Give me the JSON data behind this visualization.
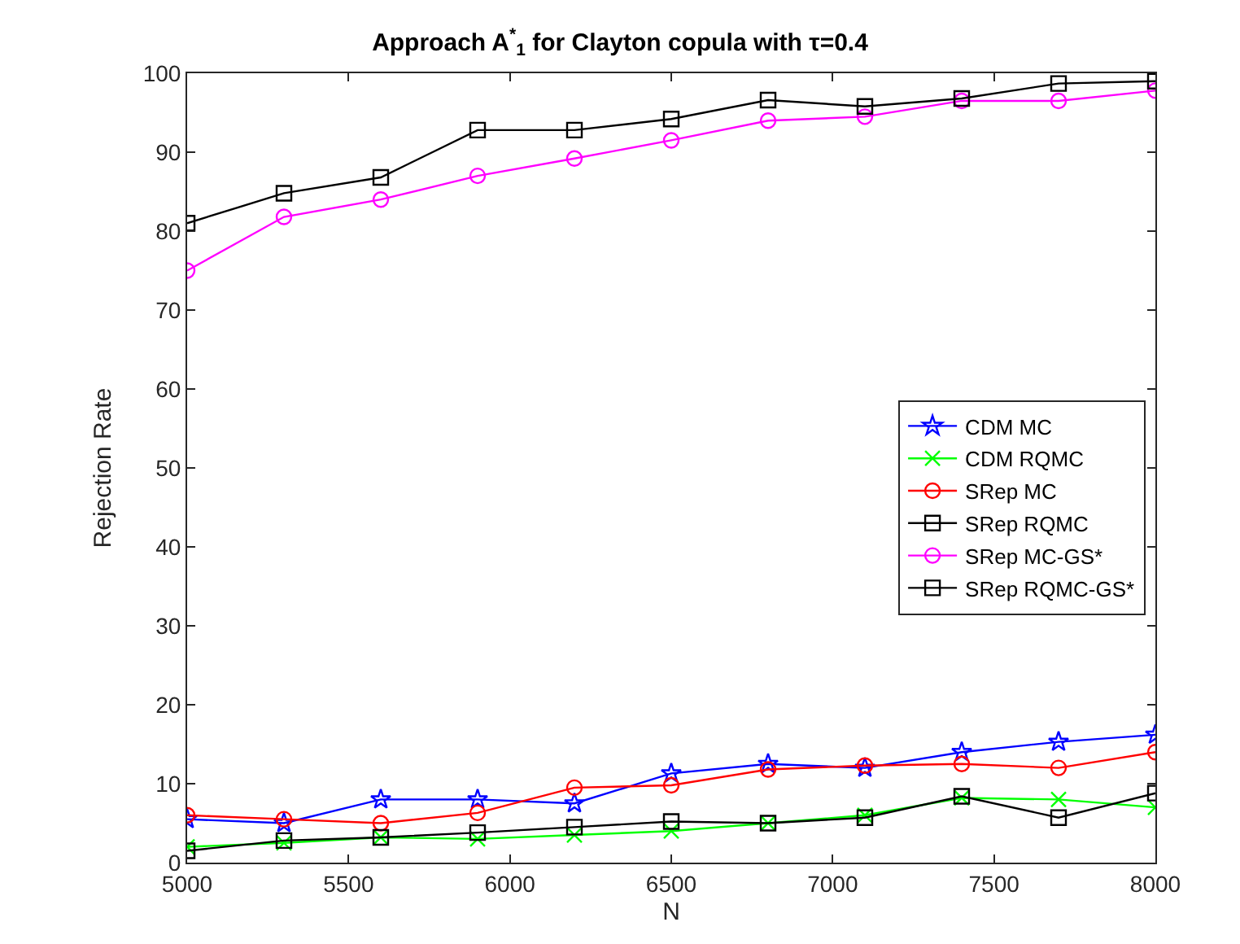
{
  "chart_data": {
    "type": "line",
    "title": "Approach A$^{*}$$_{1}$ for Clayton copula with τ=0.4",
    "xlabel": "N",
    "ylabel": "Rejection Rate",
    "x": [
      5000,
      5300,
      5600,
      5900,
      6200,
      6500,
      6800,
      7100,
      7400,
      7700,
      8000
    ],
    "xlim": [
      5000,
      8000
    ],
    "xticks": [
      5000,
      5500,
      6000,
      6500,
      7000,
      7500,
      8000
    ],
    "ylim": [
      0,
      100
    ],
    "yticks": [
      0,
      10,
      20,
      30,
      40,
      50,
      60,
      70,
      80,
      90,
      100
    ],
    "legend": "right",
    "line_style": "solid",
    "series": [
      {
        "name": "CDM MC",
        "color": "#0000ff",
        "marker": "star",
        "values": [
          5.5,
          5,
          8,
          8,
          7.5,
          11.3,
          12.5,
          12,
          14,
          15.3,
          16.2
        ]
      },
      {
        "name": "CDM RQMC",
        "color": "#00ff00",
        "marker": "cross",
        "values": [
          2,
          2.5,
          3.2,
          3,
          3.5,
          4,
          5,
          6,
          8.2,
          8,
          7
        ]
      },
      {
        "name": "SRep MC",
        "color": "#ff0000",
        "marker": "circle",
        "values": [
          6,
          5.5,
          5,
          6.3,
          9.5,
          9.8,
          11.8,
          12.3,
          12.5,
          12,
          14
        ]
      },
      {
        "name": "SRep RQMC",
        "color": "#000000",
        "marker": "square",
        "values": [
          1.5,
          2.8,
          3.2,
          3.8,
          4.5,
          5.2,
          5,
          5.7,
          8.4,
          5.7,
          8.8
        ]
      },
      {
        "name": "SRep MC-GS*",
        "color": "#ff00ff",
        "marker": "circle",
        "values": [
          75,
          81.8,
          84,
          87,
          89.2,
          91.5,
          94,
          94.5,
          96.5,
          96.5,
          97.8
        ]
      },
      {
        "name": "SRep RQMC-GS*",
        "color": "#000000",
        "marker": "square",
        "values": [
          81,
          84.8,
          86.8,
          92.8,
          92.8,
          94.2,
          96.6,
          95.8,
          96.8,
          98.7,
          99
        ]
      }
    ]
  }
}
